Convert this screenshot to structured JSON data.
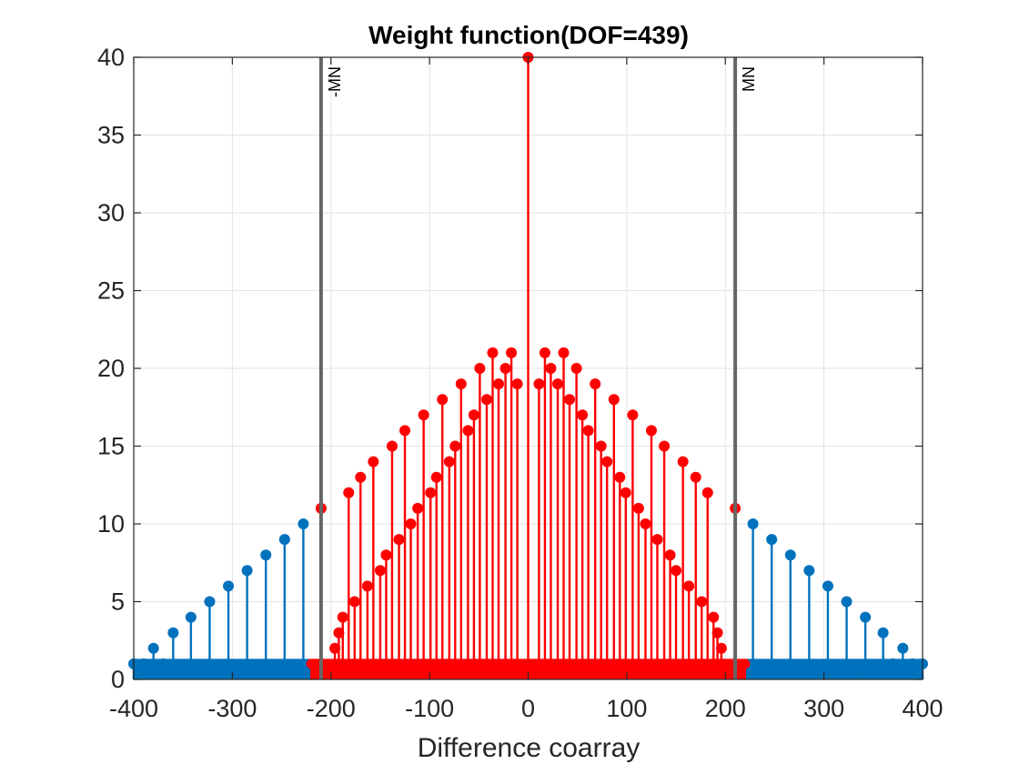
{
  "chart_data": {
    "type": "stem",
    "title": "Weight function(DOF=439)",
    "xlabel": "Difference coarray",
    "ylabel": "",
    "xlim": [
      -400,
      400
    ],
    "ylim": [
      0,
      40
    ],
    "xticks": [
      -400,
      -300,
      -200,
      -100,
      0,
      100,
      200,
      300,
      400
    ],
    "yticks": [
      0,
      5,
      10,
      15,
      20,
      25,
      30,
      35,
      40
    ],
    "xtick_labels": [
      "-400",
      "-300",
      "-200",
      "-100",
      "0",
      "100",
      "200",
      "300",
      "400"
    ],
    "ytick_labels": [
      "0",
      "5",
      "10",
      "15",
      "20",
      "25",
      "30",
      "35",
      "40"
    ],
    "grid": true,
    "colors": {
      "blue": "#0072bd",
      "red": "#ff0000",
      "vline": "#666666"
    },
    "vertical_lines": [
      {
        "x": -210,
        "label": "-MN"
      },
      {
        "x": 210,
        "label": "MN"
      }
    ],
    "series": [
      {
        "color": "blue",
        "x": [
          -400,
          -390,
          -380,
          -370,
          -360,
          -342,
          -323,
          -304,
          -285,
          -266,
          -247,
          -228
        ],
        "values": [
          1,
          1,
          2,
          1,
          3,
          4,
          5,
          6,
          7,
          8,
          9,
          10
        ],
        "dense_ones_range": [
          -400,
          -221
        ]
      },
      {
        "color": "blue",
        "x": [
          400,
          390,
          380,
          370,
          360,
          342,
          323,
          304,
          285,
          266,
          247,
          228
        ],
        "values": [
          1,
          1,
          2,
          1,
          3,
          4,
          5,
          6,
          7,
          8,
          9,
          10
        ],
        "dense_ones_range": [
          221,
          400
        ]
      },
      {
        "color": "red",
        "x": [
          -210,
          -196,
          -192,
          -188,
          -182,
          -176,
          -170,
          -163,
          -157,
          -150,
          -144,
          -138,
          -131,
          -125,
          -119,
          -112,
          -106,
          -99,
          -93,
          -87,
          -80,
          -74,
          -68,
          -61,
          -55,
          -49,
          -42,
          -36,
          -30,
          -23,
          -17,
          -11,
          0,
          11,
          17,
          23,
          30,
          36,
          42,
          49,
          55,
          61,
          68,
          74,
          80,
          87,
          93,
          99,
          106,
          112,
          119,
          125,
          131,
          138,
          144,
          150,
          157,
          163,
          170,
          176,
          182,
          188,
          192,
          196,
          210
        ],
        "values": [
          11,
          2,
          3,
          4,
          12,
          5,
          13,
          6,
          14,
          7,
          8,
          15,
          9,
          16,
          10,
          11,
          17,
          12,
          13,
          18,
          14,
          15,
          19,
          16,
          17,
          20,
          18,
          21,
          19,
          20,
          21,
          19,
          40,
          19,
          21,
          20,
          19,
          21,
          18,
          20,
          17,
          16,
          19,
          15,
          14,
          18,
          13,
          12,
          17,
          11,
          10,
          16,
          9,
          15,
          8,
          7,
          14,
          6,
          13,
          5,
          12,
          4,
          3,
          2,
          11
        ],
        "dense_ones_range": [
          -220,
          220
        ]
      }
    ]
  }
}
